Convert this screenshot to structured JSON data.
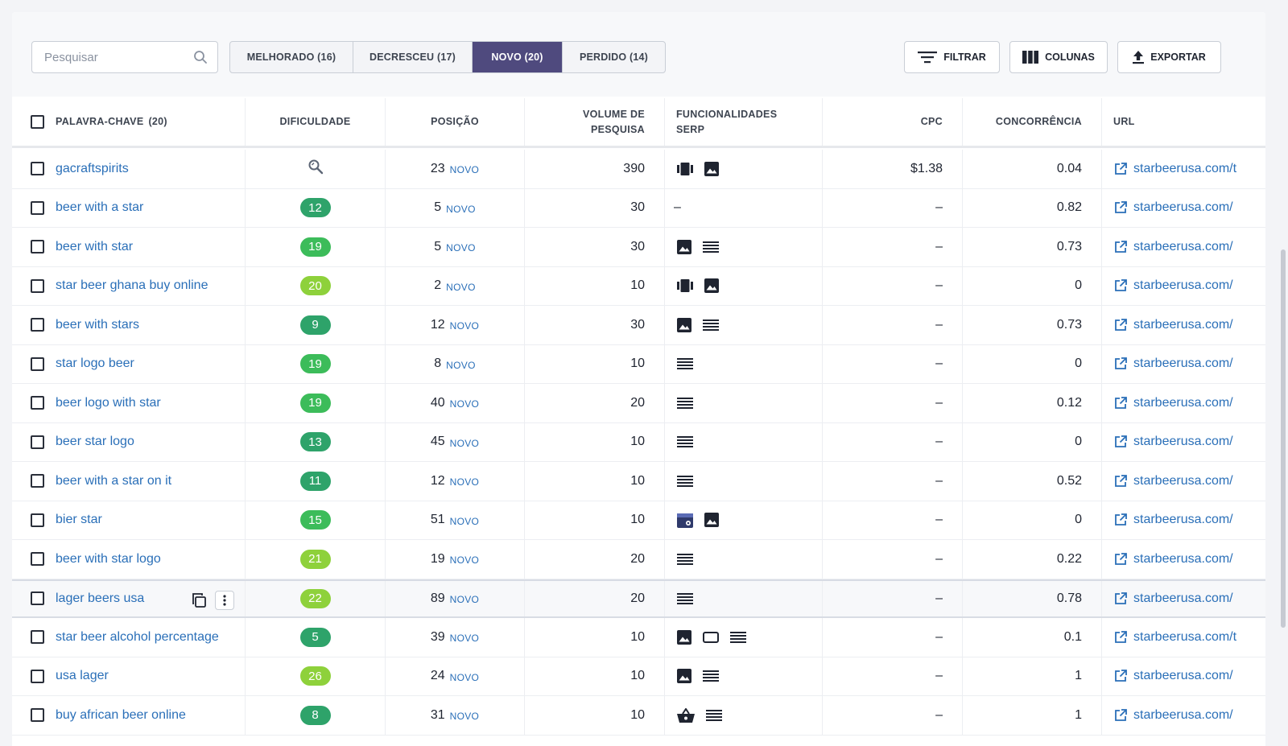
{
  "search": {
    "placeholder": "Pesquisar"
  },
  "segments": [
    {
      "label": "MELHORADO (16)",
      "active": false
    },
    {
      "label": "DECRESCEU (17)",
      "active": false
    },
    {
      "label": "NOVO (20)",
      "active": true
    },
    {
      "label": "PERDIDO (14)",
      "active": false
    }
  ],
  "buttons": {
    "filter": "FILTRAR",
    "columns": "COLUNAS",
    "export": "EXPORTAR"
  },
  "columns": {
    "keyword": "PALAVRA-CHAVE",
    "keyword_count": "(20)",
    "difficulty": "DIFICULDADE",
    "position": "POSIÇÃO",
    "volume_1": "VOLUME DE",
    "volume_2": "PESQUISA",
    "serp_1": "FUNCIONALIDADES",
    "serp_2": "SERP",
    "cpc": "CPC",
    "competition": "CONCORRÊNCIA",
    "url": "URL"
  },
  "colors": {
    "accent": "#4f4a7e",
    "link": "#2a6fb8",
    "green_dark": "#2ea36a",
    "green_mid": "#3cbc5a",
    "green_light": "#8ed13b"
  },
  "rows": [
    {
      "keyword": "gacraftspirits",
      "difficulty": "",
      "difficulty_icon": "search-magnify-icon",
      "position": "23",
      "tag": "NOVO",
      "volume": "390",
      "serp": [
        "carousel-icon",
        "image-icon"
      ],
      "cpc": "$1.38",
      "competition": "0.04",
      "url": "starbeerusa.com/t"
    },
    {
      "keyword": "beer with a star",
      "difficulty": "12",
      "position": "5",
      "tag": "NOVO",
      "volume": "30",
      "serp": [
        "dash"
      ],
      "cpc": "–",
      "competition": "0.82",
      "url": "starbeerusa.com/"
    },
    {
      "keyword": "beer with star",
      "difficulty": "19",
      "position": "5",
      "tag": "NOVO",
      "volume": "30",
      "serp": [
        "image-icon",
        "list-icon"
      ],
      "cpc": "–",
      "competition": "0.73",
      "url": "starbeerusa.com/"
    },
    {
      "keyword": "star beer ghana buy online",
      "difficulty": "20",
      "position": "2",
      "tag": "NOVO",
      "volume": "10",
      "serp": [
        "carousel-icon",
        "image-icon"
      ],
      "cpc": "–",
      "competition": "0",
      "url": "starbeerusa.com/"
    },
    {
      "keyword": "beer with stars",
      "difficulty": "9",
      "position": "12",
      "tag": "NOVO",
      "volume": "30",
      "serp": [
        "image-icon",
        "list-icon"
      ],
      "cpc": "–",
      "competition": "0.73",
      "url": "starbeerusa.com/"
    },
    {
      "keyword": "star logo beer",
      "difficulty": "19",
      "position": "8",
      "tag": "NOVO",
      "volume": "10",
      "serp": [
        "list-icon"
      ],
      "cpc": "–",
      "competition": "0",
      "url": "starbeerusa.com/"
    },
    {
      "keyword": "beer logo with star",
      "difficulty": "19",
      "position": "40",
      "tag": "NOVO",
      "volume": "20",
      "serp": [
        "list-icon"
      ],
      "cpc": "–",
      "competition": "0.12",
      "url": "starbeerusa.com/"
    },
    {
      "keyword": "beer star logo",
      "difficulty": "13",
      "position": "45",
      "tag": "NOVO",
      "volume": "10",
      "serp": [
        "list-icon"
      ],
      "cpc": "–",
      "competition": "0",
      "url": "starbeerusa.com/"
    },
    {
      "keyword": "beer with a star on it",
      "difficulty": "11",
      "position": "12",
      "tag": "NOVO",
      "volume": "10",
      "serp": [
        "list-icon"
      ],
      "cpc": "–",
      "competition": "0.52",
      "url": "starbeerusa.com/"
    },
    {
      "keyword": "bier star",
      "difficulty": "15",
      "position": "51",
      "tag": "NOVO",
      "volume": "10",
      "serp": [
        "local-pack-icon",
        "image-icon"
      ],
      "cpc": "–",
      "competition": "0",
      "url": "starbeerusa.com/"
    },
    {
      "keyword": "beer with star logo",
      "difficulty": "21",
      "position": "19",
      "tag": "NOVO",
      "volume": "20",
      "serp": [
        "list-icon"
      ],
      "cpc": "–",
      "competition": "0.22",
      "url": "starbeerusa.com/"
    },
    {
      "keyword": "lager beers usa",
      "difficulty": "22",
      "position": "89",
      "tag": "NOVO",
      "volume": "20",
      "serp": [
        "list-icon"
      ],
      "cpc": "–",
      "competition": "0.78",
      "url": "starbeerusa.com/"
    },
    {
      "keyword": "star beer alcohol percentage",
      "difficulty": "5",
      "position": "39",
      "tag": "NOVO",
      "volume": "10",
      "serp": [
        "image-icon",
        "featured-snippet-icon",
        "list-icon"
      ],
      "cpc": "–",
      "competition": "0.1",
      "url": "starbeerusa.com/t"
    },
    {
      "keyword": "usa lager",
      "difficulty": "26",
      "position": "24",
      "tag": "NOVO",
      "volume": "10",
      "serp": [
        "image-icon",
        "list-icon"
      ],
      "cpc": "–",
      "competition": "1",
      "url": "starbeerusa.com/"
    },
    {
      "keyword": "buy african beer online",
      "difficulty": "8",
      "position": "31",
      "tag": "NOVO",
      "volume": "10",
      "serp": [
        "shopping-icon",
        "list-icon"
      ],
      "cpc": "–",
      "competition": "1",
      "url": "starbeerusa.com/"
    }
  ]
}
